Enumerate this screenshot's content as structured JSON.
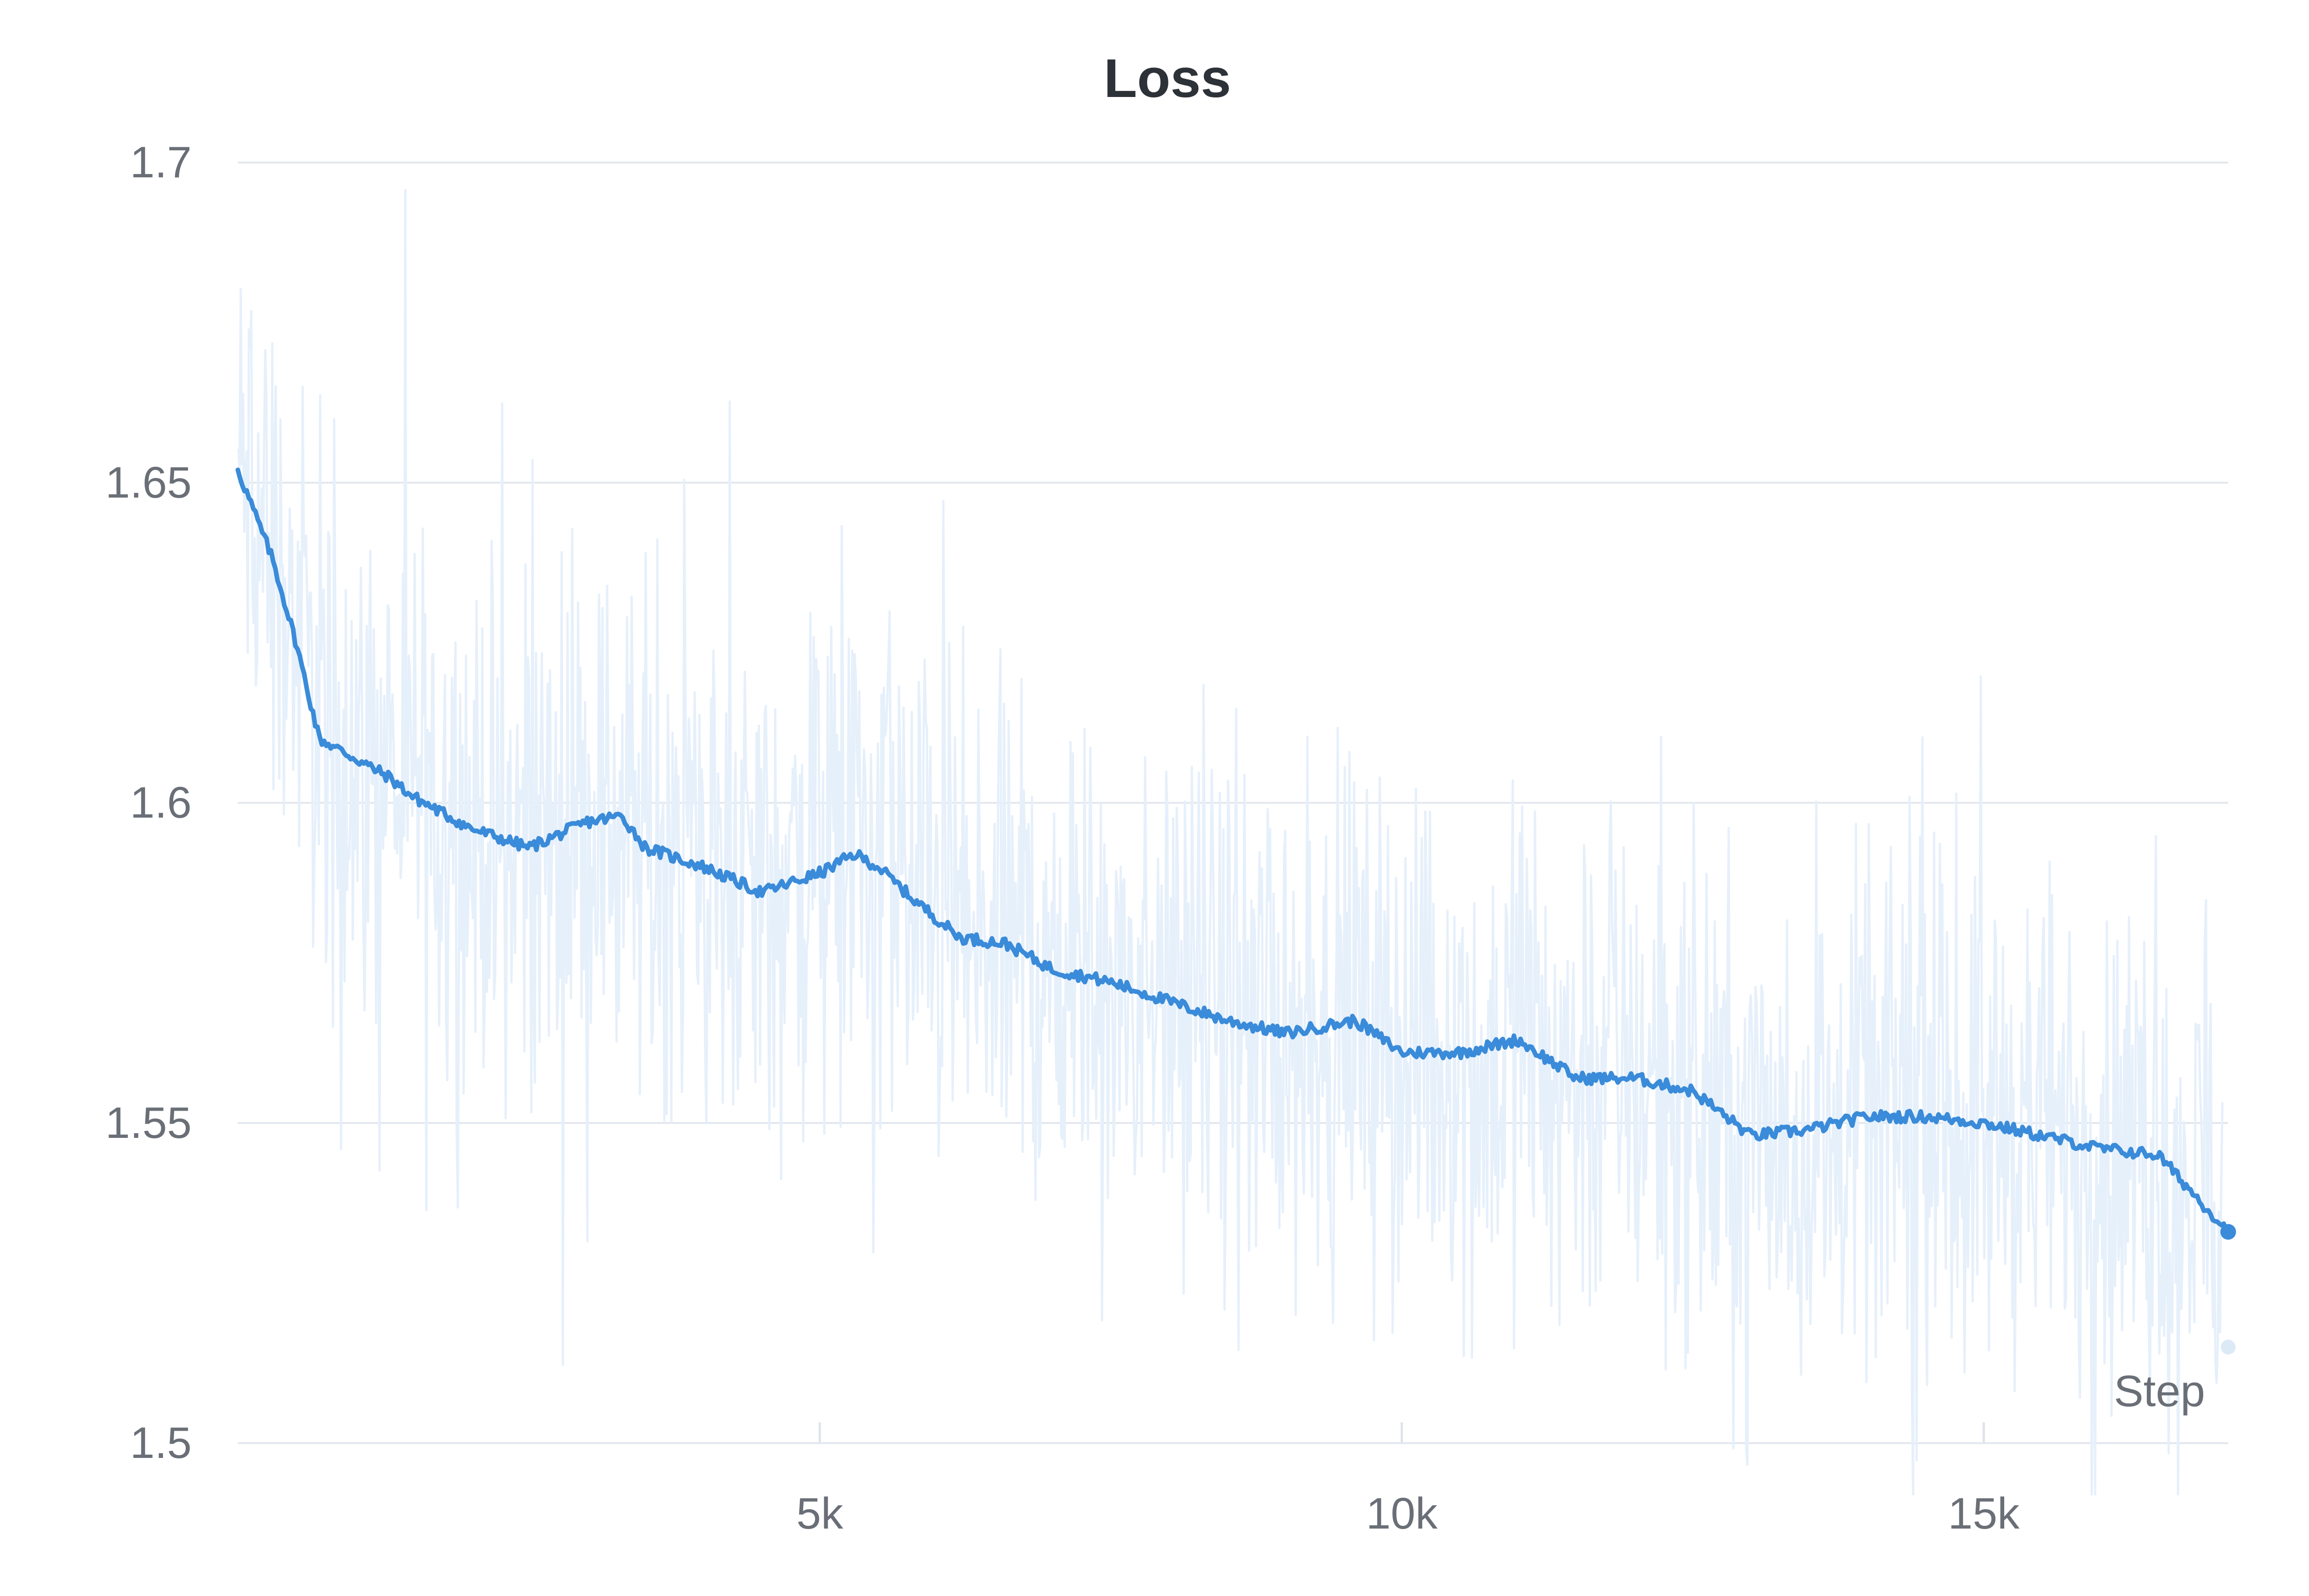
{
  "chart_data": {
    "type": "line",
    "title": "Loss",
    "xlabel": "Step",
    "ylabel": "",
    "xlim": [
      0,
      17100
    ],
    "ylim": [
      1.5,
      1.7
    ],
    "x_ticks": [
      5000,
      10000,
      15000
    ],
    "x_tick_labels": [
      "5k",
      "10k",
      "15k"
    ],
    "y_ticks": [
      1.5,
      1.55,
      1.6,
      1.65,
      1.7
    ],
    "y_tick_labels": [
      "1.5",
      "1.55",
      "1.6",
      "1.65",
      "1.7"
    ],
    "grid": true,
    "colors": {
      "smoothed": "#3a8bd9",
      "raw": "#e6f0fb",
      "grid": "#e3e7ee"
    },
    "series": [
      {
        "x": [
          0,
          300,
          500,
          700,
          1000,
          1300,
          1500,
          1800,
          2000,
          2500,
          3000,
          3300,
          3500,
          4000,
          4500,
          5000,
          5300,
          5500,
          5800,
          6200,
          6600,
          7000,
          7500,
          8000,
          8500,
          9000,
          9600,
          10000,
          10500,
          11000,
          11500,
          12000,
          12500,
          13000,
          13500,
          14000,
          14500,
          15000,
          15500,
          16000,
          16500,
          17100
        ],
        "y": [
          1.652,
          1.638,
          1.625,
          1.61,
          1.607,
          1.604,
          1.601,
          1.598,
          1.596,
          1.593,
          1.597,
          1.598,
          1.593,
          1.59,
          1.586,
          1.589,
          1.592,
          1.59,
          1.585,
          1.579,
          1.578,
          1.574,
          1.572,
          1.569,
          1.566,
          1.564,
          1.566,
          1.561,
          1.561,
          1.563,
          1.557,
          1.557,
          1.555,
          1.548,
          1.549,
          1.551,
          1.551,
          1.55,
          1.548,
          1.546,
          1.545,
          1.533
        ]
      }
    ]
  }
}
